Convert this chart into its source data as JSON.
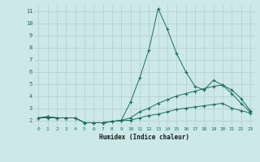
{
  "xlabel": "Humidex (Indice chaleur)",
  "background_color": "#cce8e8",
  "grid_color": "#b8d0d0",
  "line_color": "#1a6e5e",
  "x": [
    0,
    1,
    2,
    3,
    4,
    5,
    6,
    7,
    8,
    9,
    10,
    11,
    12,
    13,
    14,
    15,
    16,
    17,
    18,
    19,
    20,
    21,
    22,
    23
  ],
  "y_max": [
    2.2,
    2.3,
    2.2,
    2.2,
    2.2,
    1.8,
    1.8,
    1.8,
    1.9,
    2.0,
    3.5,
    5.5,
    7.8,
    11.2,
    9.5,
    7.5,
    6.0,
    4.8,
    4.5,
    5.3,
    4.9,
    4.2,
    3.4,
    2.7
  ],
  "y_avg": [
    2.2,
    2.3,
    2.2,
    2.2,
    2.2,
    1.8,
    1.8,
    1.8,
    1.9,
    2.0,
    2.2,
    2.7,
    3.0,
    3.4,
    3.7,
    4.0,
    4.2,
    4.4,
    4.6,
    4.8,
    4.9,
    4.5,
    3.8,
    2.8
  ],
  "y_min": [
    2.2,
    2.2,
    2.2,
    2.2,
    2.2,
    1.8,
    1.8,
    1.8,
    1.9,
    2.0,
    2.0,
    2.2,
    2.4,
    2.5,
    2.7,
    2.9,
    3.0,
    3.1,
    3.2,
    3.3,
    3.4,
    3.0,
    2.8,
    2.6
  ],
  "ylim": [
    1.5,
    11.5
  ],
  "xlim": [
    -0.5,
    23.5
  ],
  "yticks": [
    2,
    3,
    4,
    5,
    6,
    7,
    8,
    9,
    10,
    11
  ],
  "xticks": [
    0,
    1,
    2,
    3,
    4,
    5,
    6,
    7,
    8,
    9,
    10,
    11,
    12,
    13,
    14,
    15,
    16,
    17,
    18,
    19,
    20,
    21,
    22,
    23
  ],
  "tick_color": "#1a6e5e",
  "label_color": "#1a1a1a"
}
